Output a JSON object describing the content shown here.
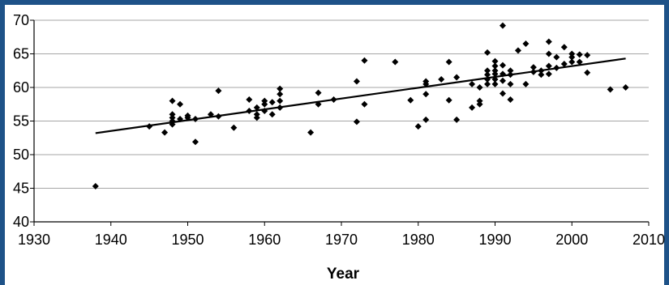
{
  "chart_data": {
    "type": "scatter",
    "title": "",
    "xlabel": "Year",
    "ylabel": "",
    "xlim": [
      1930,
      2010
    ],
    "ylim": [
      40,
      70
    ],
    "xticks": [
      "1930",
      "1940",
      "1950",
      "1960",
      "1970",
      "1980",
      "1990",
      "2000",
      "2010"
    ],
    "yticks": [
      "40",
      "45",
      "50",
      "55",
      "60",
      "65",
      "70"
    ],
    "grid": true,
    "legend": "none",
    "marker_color": "#000000",
    "gridline_color": "#a6a6a6",
    "frame_color": "#1e5288",
    "points": [
      [
        1938,
        45.3
      ],
      [
        1945,
        54.2
      ],
      [
        1947,
        53.3
      ],
      [
        1948,
        54.5
      ],
      [
        1948,
        55.0
      ],
      [
        1948,
        55.5
      ],
      [
        1948,
        56.0
      ],
      [
        1948,
        58.0
      ],
      [
        1949,
        57.5
      ],
      [
        1949,
        55.3
      ],
      [
        1950,
        55.8
      ],
      [
        1950,
        55.5
      ],
      [
        1951,
        55.3
      ],
      [
        1951,
        51.9
      ],
      [
        1953,
        56.0
      ],
      [
        1954,
        55.7
      ],
      [
        1954,
        59.5
      ],
      [
        1956,
        54.0
      ],
      [
        1958,
        56.5
      ],
      [
        1958,
        58.2
      ],
      [
        1959,
        56.0
      ],
      [
        1959,
        55.5
      ],
      [
        1959,
        57.0
      ],
      [
        1960,
        56.5
      ],
      [
        1960,
        57.5
      ],
      [
        1960,
        58.0
      ],
      [
        1961,
        56.0
      ],
      [
        1961,
        57.8
      ],
      [
        1962,
        57.0
      ],
      [
        1962,
        58.0
      ],
      [
        1962,
        59.0
      ],
      [
        1962,
        59.8
      ],
      [
        1966,
        53.3
      ],
      [
        1967,
        57.5
      ],
      [
        1967,
        59.2
      ],
      [
        1969,
        58.2
      ],
      [
        1972,
        54.9
      ],
      [
        1972,
        60.9
      ],
      [
        1973,
        57.5
      ],
      [
        1973,
        64.0
      ],
      [
        1977,
        63.8
      ],
      [
        1979,
        58.1
      ],
      [
        1980,
        54.2
      ],
      [
        1981,
        55.2
      ],
      [
        1981,
        59.0
      ],
      [
        1981,
        60.5
      ],
      [
        1981,
        60.9
      ],
      [
        1983,
        61.2
      ],
      [
        1984,
        58.1
      ],
      [
        1984,
        63.8
      ],
      [
        1985,
        55.2
      ],
      [
        1985,
        61.5
      ],
      [
        1987,
        57.0
      ],
      [
        1987,
        60.5
      ],
      [
        1988,
        57.5
      ],
      [
        1988,
        58.0
      ],
      [
        1988,
        60.0
      ],
      [
        1989,
        60.5
      ],
      [
        1989,
        61.2
      ],
      [
        1989,
        61.9
      ],
      [
        1989,
        62.5
      ],
      [
        1989,
        65.2
      ],
      [
        1990,
        60.5
      ],
      [
        1990,
        61.2
      ],
      [
        1990,
        62.0
      ],
      [
        1990,
        62.5
      ],
      [
        1990,
        63.2
      ],
      [
        1990,
        63.9
      ],
      [
        1991,
        59.1
      ],
      [
        1991,
        61.0
      ],
      [
        1991,
        62.0
      ],
      [
        1991,
        63.3
      ],
      [
        1991,
        69.2
      ],
      [
        1992,
        58.2
      ],
      [
        1992,
        60.5
      ],
      [
        1992,
        61.9
      ],
      [
        1992,
        62.5
      ],
      [
        1993,
        65.5
      ],
      [
        1994,
        60.5
      ],
      [
        1994,
        66.5
      ],
      [
        1995,
        62.3
      ],
      [
        1995,
        63.0
      ],
      [
        1996,
        61.9
      ],
      [
        1996,
        62.5
      ],
      [
        1997,
        62.0
      ],
      [
        1997,
        63.2
      ],
      [
        1997,
        65.0
      ],
      [
        1997,
        66.8
      ],
      [
        1998,
        62.9
      ],
      [
        1998,
        64.5
      ],
      [
        1999,
        63.5
      ],
      [
        1999,
        66.0
      ],
      [
        2000,
        63.8
      ],
      [
        2000,
        64.5
      ],
      [
        2000,
        65.0
      ],
      [
        2001,
        63.8
      ],
      [
        2001,
        64.9
      ],
      [
        2002,
        62.2
      ],
      [
        2002,
        64.8
      ],
      [
        2005,
        59.7
      ],
      [
        2007,
        60.0
      ]
    ],
    "trendline": {
      "x": [
        1938,
        2007
      ],
      "y": [
        53.2,
        64.3
      ]
    }
  }
}
